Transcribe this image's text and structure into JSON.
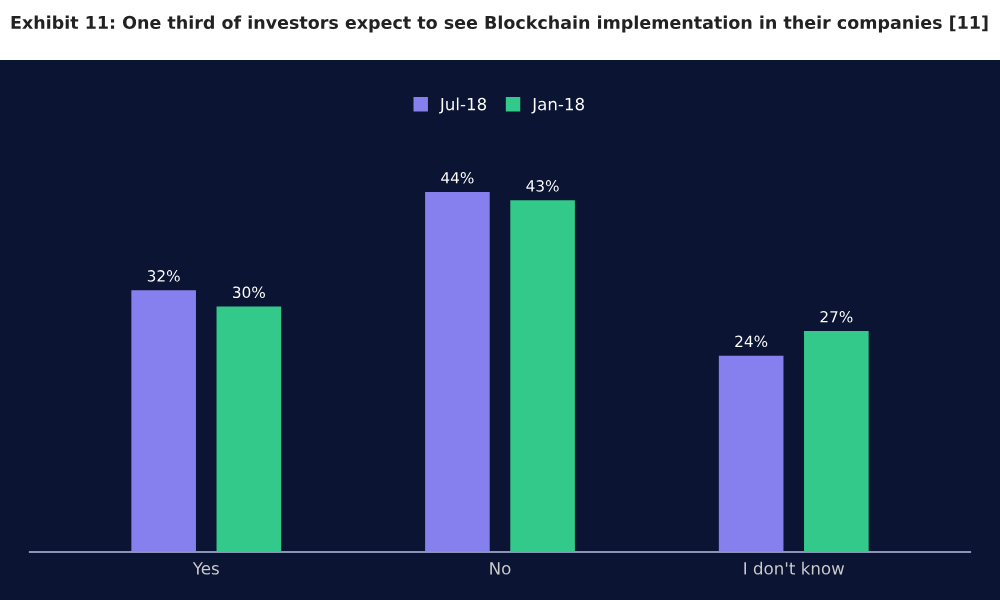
{
  "chart_data": {
    "type": "bar",
    "title": "Exhibit 11: One third of investors expect to see Blockchain implementation in their companies [11]",
    "categories": [
      "Yes",
      "No",
      "I don't know"
    ],
    "series": [
      {
        "name": "Jul-18",
        "color": "#8580ee",
        "values": [
          32,
          44,
          24
        ],
        "value_labels": [
          "32%",
          "44%",
          "24%"
        ]
      },
      {
        "name": "Jan-18",
        "color": "#33c98a",
        "values": [
          30,
          43,
          27
        ],
        "value_labels": [
          "30%",
          "43%",
          "27%"
        ]
      }
    ],
    "tick_labels": "x",
    "grid": false,
    "legend": "top"
  }
}
